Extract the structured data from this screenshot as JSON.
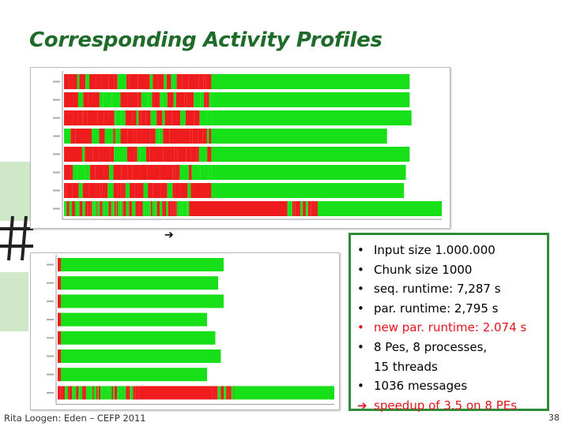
{
  "slide": {
    "title": "Corresponding Activity Profiles",
    "footer": "Rita Loogen: Eden – CEFP 2011",
    "page_number": "38",
    "arrow_glyph": "➔"
  },
  "info": {
    "items": [
      {
        "bullet": "•",
        "text": "Input size 1.000.000",
        "style": "normal"
      },
      {
        "bullet": "•",
        "text": "Chunk size 1000",
        "style": "normal"
      },
      {
        "bullet": "•",
        "text": "seq. runtime:   7,287 s",
        "style": "normal"
      },
      {
        "bullet": "•",
        "text": "par. runtime:   2,795 s",
        "style": "normal"
      },
      {
        "bullet": "•",
        "text": "new par. runtime:  2.074 s",
        "style": "red"
      },
      {
        "bullet": "•",
        "text": "8 Pes, 8 processes,",
        "style": "normal"
      },
      {
        "bullet": "",
        "text": "15 threads",
        "style": "normal"
      },
      {
        "bullet": "•",
        "text": "1036 messages",
        "style": "normal"
      },
      {
        "bullet": "➔",
        "text": "speedup of  3.5  on 8 PEs",
        "style": "red"
      }
    ]
  },
  "colors": {
    "running": "#18e018",
    "blocked": "#ee1c1c",
    "title": "#1e6b2a",
    "box_border": "#2e8b3a"
  },
  "profiles": {
    "top": {
      "rows": [
        {
          "running_from": 0.39,
          "end": 0.915,
          "mixed": true
        },
        {
          "running_from": 0.39,
          "end": 0.915,
          "mixed": true
        },
        {
          "running_from": 0.39,
          "end": 0.92,
          "mixed": true
        },
        {
          "running_from": 0.39,
          "end": 0.855,
          "mixed": true
        },
        {
          "running_from": 0.39,
          "end": 0.915,
          "mixed": true
        },
        {
          "running_from": 0.39,
          "end": 0.905,
          "mixed": true
        },
        {
          "running_from": 0.39,
          "end": 0.9,
          "mixed": true
        },
        {
          "running_from": 0.0,
          "end": 1.0,
          "main": true
        }
      ]
    },
    "bottom": {
      "rows": [
        {
          "running_from": 0.0,
          "end": 0.6,
          "mixed": false
        },
        {
          "running_from": 0.0,
          "end": 0.58,
          "mixed": false
        },
        {
          "running_from": 0.0,
          "end": 0.6,
          "mixed": false
        },
        {
          "running_from": 0.0,
          "end": 0.54,
          "mixed": false
        },
        {
          "running_from": 0.0,
          "end": 0.57,
          "mixed": false
        },
        {
          "running_from": 0.0,
          "end": 0.59,
          "mixed": false
        },
        {
          "running_from": 0.0,
          "end": 0.54,
          "mixed": false
        },
        {
          "running_from": 0.0,
          "end": 1.0,
          "main": true
        }
      ]
    }
  }
}
